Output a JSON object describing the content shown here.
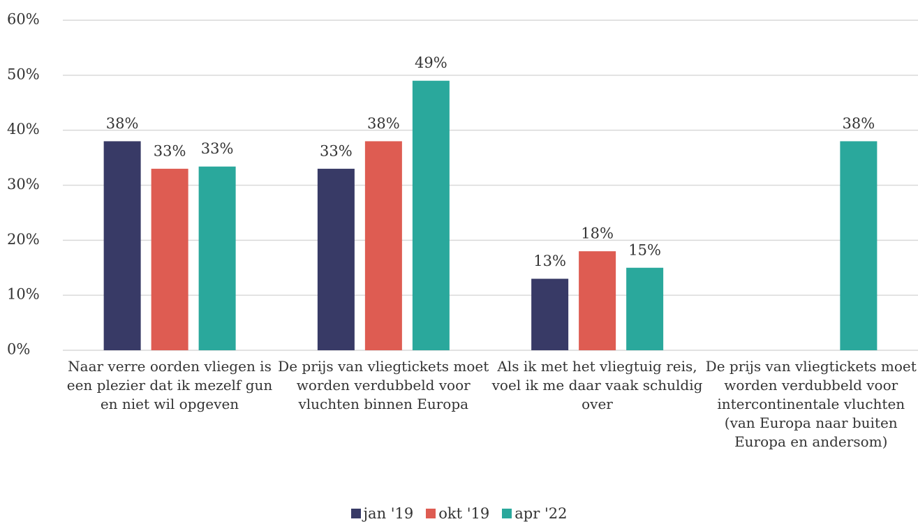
{
  "chart_data": {
    "type": "bar",
    "categories": [
      "Naar verre oorden vliegen is een plezier dat ik mezelf gun en niet wil opgeven",
      "De prijs van vliegtickets moet worden verdubbeld voor vluchten binnen Europa",
      "Als ik met het vliegtuig reis, voel ik me daar vaak schuldig over",
      "De prijs van vliegtickets moet worden verdubbeld voor intercontinentale vluchten (van Europa naar buiten Europa en andersom)"
    ],
    "series": [
      {
        "name": "jan '19",
        "color": "#383a66",
        "values": [
          38,
          33,
          13,
          null
        ],
        "value_labels": [
          "38%",
          "33%",
          "13%",
          null
        ]
      },
      {
        "name": "okt '19",
        "color": "#de5c52",
        "values": [
          33,
          38,
          18,
          null
        ],
        "value_labels": [
          "33%",
          "38%",
          "18%",
          null
        ]
      },
      {
        "name": "apr '22",
        "color": "#2aa89c",
        "values": [
          33.4,
          49,
          15,
          38
        ],
        "value_labels": [
          "33%",
          "49%",
          "15%",
          "38%"
        ]
      }
    ],
    "ylim": [
      0,
      60
    ],
    "yticks": [
      {
        "value": 0,
        "label": "0%"
      },
      {
        "value": 10,
        "label": "10%"
      },
      {
        "value": 20,
        "label": "20%"
      },
      {
        "value": 30,
        "label": "30%"
      },
      {
        "value": 40,
        "label": "40%"
      },
      {
        "value": 50,
        "label": "50%"
      },
      {
        "value": 60,
        "label": "60%"
      }
    ],
    "grid": true,
    "legend": "bottom"
  }
}
